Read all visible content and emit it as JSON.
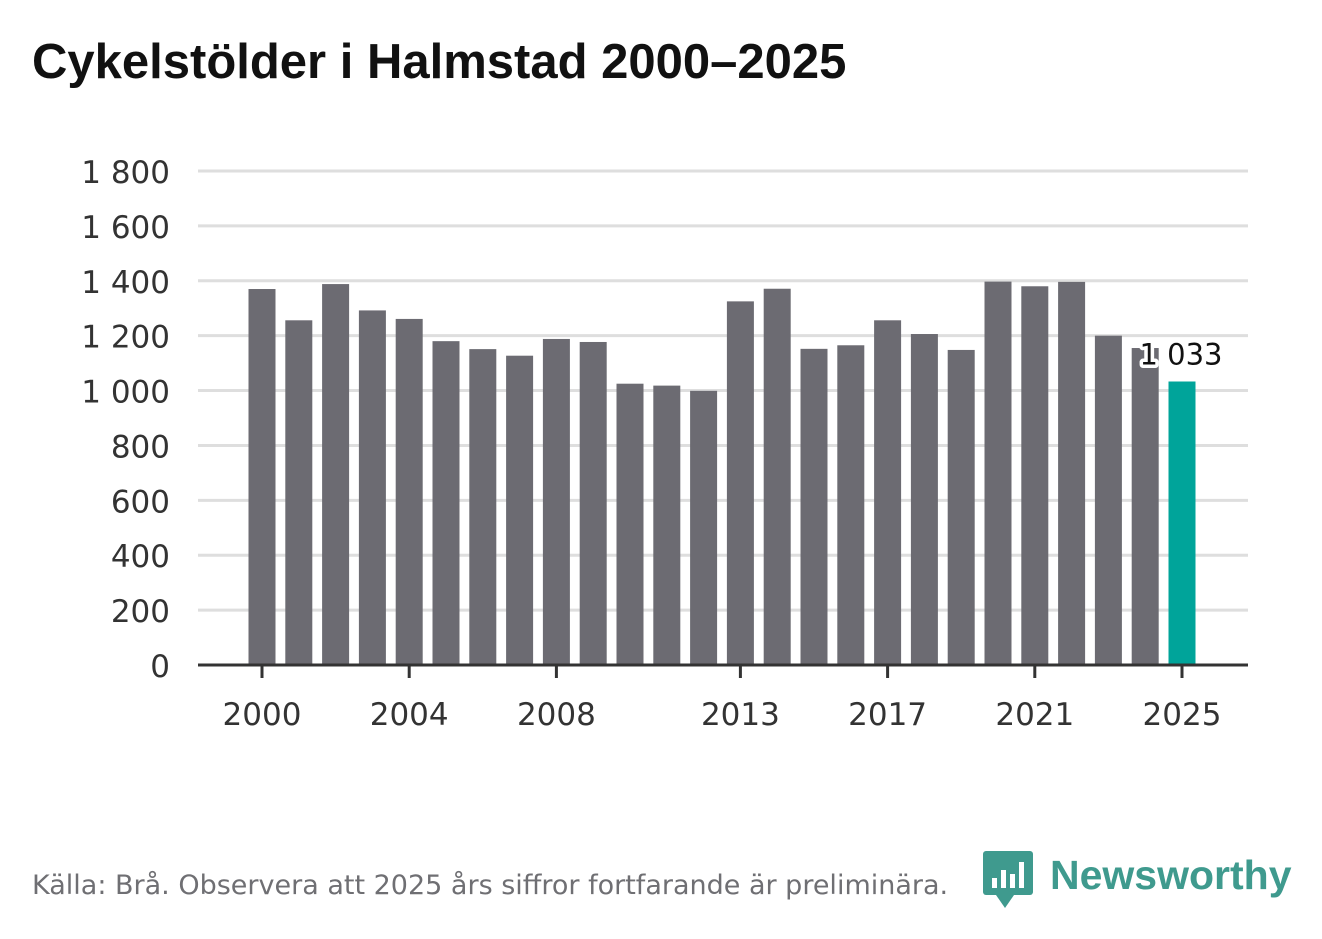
{
  "chart_data": {
    "type": "bar",
    "title": "Cykelstölder i Halmstad 2000–2025",
    "xlabel": "",
    "ylabel": "",
    "categories": [
      "2000",
      "2001",
      "2002",
      "2003",
      "2004",
      "2005",
      "2006",
      "2007",
      "2008",
      "2009",
      "2010",
      "2011",
      "2012",
      "2013",
      "2014",
      "2015",
      "2016",
      "2017",
      "2018",
      "2019",
      "2020",
      "2021",
      "2022",
      "2023",
      "2024",
      "2025"
    ],
    "values": [
      1370,
      1256,
      1388,
      1292,
      1261,
      1180,
      1151,
      1127,
      1188,
      1177,
      1025,
      1018,
      999,
      1325,
      1371,
      1152,
      1165,
      1256,
      1206,
      1148,
      1397,
      1380,
      1396,
      1200,
      1155,
      1033
    ],
    "ylim": [
      0,
      1800
    ],
    "yticks": [
      0,
      200,
      400,
      600,
      800,
      1000,
      1200,
      1400,
      1600,
      1800
    ],
    "ytick_labels": [
      "0",
      "200",
      "400",
      "600",
      "800",
      "1 000",
      "1 200",
      "1 400",
      "1 600",
      "1 800"
    ],
    "xticks": [
      "2000",
      "2004",
      "2008",
      "2013",
      "2017",
      "2021",
      "2025"
    ],
    "highlight": {
      "category": "2025",
      "label": "1 033"
    },
    "grid": true,
    "colors": {
      "bar": "#6c6b72",
      "highlight": "#00a49a",
      "grid": "#dedede",
      "axis": "#333333",
      "tick_text": "#333333"
    }
  },
  "footer": {
    "source": "Källa: Brå. Observera att 2025 års siffror fortfarande är preliminära."
  },
  "brand": {
    "name": "Newsworthy",
    "icon": "newsworthy-logo-icon",
    "color": "#3f9a8e"
  }
}
